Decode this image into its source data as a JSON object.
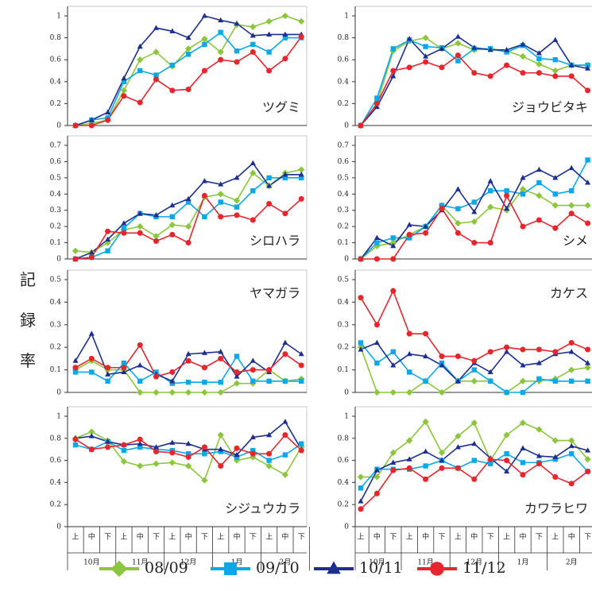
{
  "y_label": "記録率",
  "x_axis": {
    "categories": [
      "上",
      "中",
      "下",
      "上",
      "中",
      "下",
      "上",
      "中",
      "下",
      "上",
      "中",
      "下",
      "上",
      "中",
      "下"
    ],
    "groups": [
      "10月",
      "11月",
      "12月",
      "1月",
      "2月"
    ]
  },
  "legend": [
    {
      "name": "08/09",
      "color": "#8cc63e",
      "marker": "diamond"
    },
    {
      "name": "09/10",
      "color": "#0aa8e8",
      "marker": "square"
    },
    {
      "name": "10/11",
      "color": "#1c2f8f",
      "marker": "triangle"
    },
    {
      "name": "11/12",
      "color": "#e6262c",
      "marker": "circle"
    }
  ],
  "chart_data": [
    {
      "type": "line",
      "title": "ツグミ",
      "ylim": [
        0,
        1
      ],
      "yticks": [
        0,
        0.2,
        0.4,
        0.6,
        0.8,
        1
      ],
      "series": [
        {
          "values": [
            0,
            0.02,
            0.05,
            0.32,
            0.6,
            0.67,
            0.54,
            0.7,
            0.79,
            0.67,
            0.92,
            0.9,
            0.95,
            1.0,
            0.95
          ]
        },
        {
          "values": [
            0,
            0.05,
            0.07,
            0.4,
            0.5,
            0.46,
            0.55,
            0.65,
            0.74,
            0.85,
            0.68,
            0.74,
            0.67,
            0.8,
            0.8
          ]
        },
        {
          "values": [
            0,
            0.05,
            0.12,
            0.43,
            0.72,
            0.89,
            0.86,
            0.8,
            1.0,
            0.96,
            0.93,
            0.82,
            0.83,
            0.83,
            0.83
          ]
        },
        {
          "values": [
            0,
            0,
            0.05,
            0.27,
            0.21,
            0.42,
            0.32,
            0.33,
            0.5,
            0.6,
            0.58,
            0.67,
            0.5,
            0.61,
            0.81
          ]
        }
      ]
    },
    {
      "type": "line",
      "title": "ジョウビタキ",
      "ylim": [
        0,
        1
      ],
      "yticks": [
        0,
        0.2,
        0.4,
        0.6,
        0.8,
        1
      ],
      "series": [
        {
          "values": [
            0,
            0.2,
            0.68,
            0.77,
            0.8,
            0.7,
            0.75,
            0.69,
            0.7,
            0.68,
            0.63,
            0.56,
            0.5,
            0.55,
            0.55
          ]
        },
        {
          "values": [
            0,
            0.25,
            0.7,
            0.78,
            0.72,
            0.71,
            0.59,
            0.7,
            0.7,
            0.67,
            0.73,
            0.61,
            0.6,
            0.55,
            0.55
          ]
        },
        {
          "values": [
            0,
            0.17,
            0.45,
            0.79,
            0.63,
            0.7,
            0.81,
            0.71,
            0.69,
            0.69,
            0.74,
            0.66,
            0.78,
            0.55,
            0.52
          ]
        },
        {
          "values": [
            0,
            0.2,
            0.5,
            0.53,
            0.58,
            0.53,
            0.64,
            0.48,
            0.45,
            0.55,
            0.48,
            0.48,
            0.45,
            0.45,
            0.32
          ]
        }
      ]
    },
    {
      "type": "line",
      "title": "シロハラ",
      "ylim": [
        0,
        0.7
      ],
      "yticks": [
        0,
        0.1,
        0.2,
        0.3,
        0.4,
        0.5,
        0.6,
        0.7
      ],
      "series": [
        {
          "values": [
            0.05,
            0.04,
            0.1,
            0.18,
            0.2,
            0.14,
            0.21,
            0.2,
            0.38,
            0.4,
            0.36,
            0.53,
            0.45,
            0.53,
            0.55
          ]
        },
        {
          "values": [
            0,
            0.01,
            0.05,
            0.19,
            0.28,
            0.26,
            0.26,
            0.35,
            0.26,
            0.35,
            0.32,
            0.42,
            0.5,
            0.5,
            0.5
          ]
        },
        {
          "values": [
            0,
            0.04,
            0.12,
            0.22,
            0.28,
            0.27,
            0.33,
            0.37,
            0.48,
            0.46,
            0.5,
            0.59,
            0.45,
            0.52,
            0.52
          ]
        },
        {
          "values": [
            0,
            0.01,
            0.17,
            0.16,
            0.16,
            0.11,
            0.15,
            0.1,
            0.39,
            0.26,
            0.27,
            0.24,
            0.34,
            0.28,
            0.37
          ]
        }
      ]
    },
    {
      "type": "line",
      "title": "シメ",
      "ylim": [
        0,
        0.7
      ],
      "yticks": [
        0,
        0.1,
        0.2,
        0.3,
        0.4,
        0.5,
        0.6,
        0.7
      ],
      "series": [
        {
          "values": [
            0,
            0.08,
            0.1,
            0.15,
            0.2,
            0.33,
            0.22,
            0.23,
            0.32,
            0.3,
            0.43,
            0.39,
            0.33,
            0.33,
            0.33
          ]
        },
        {
          "values": [
            0,
            0.1,
            0.13,
            0.13,
            0.2,
            0.33,
            0.31,
            0.35,
            0.42,
            0.42,
            0.4,
            0.47,
            0.4,
            0.42,
            0.61
          ]
        },
        {
          "values": [
            0,
            0.13,
            0.08,
            0.21,
            0.2,
            0.3,
            0.43,
            0.29,
            0.48,
            0.31,
            0.5,
            0.55,
            0.5,
            0.56,
            0.47
          ]
        },
        {
          "values": [
            0,
            0,
            0,
            0.15,
            0.16,
            0.31,
            0.16,
            0.1,
            0.1,
            0.39,
            0.2,
            0.24,
            0.19,
            0.28,
            0.22
          ]
        }
      ]
    },
    {
      "type": "line",
      "title": "ヤマガラ",
      "ylim": [
        0,
        0.5
      ],
      "yticks": [
        0,
        0.1,
        0.2,
        0.3,
        0.4,
        0.5
      ],
      "series": [
        {
          "values": [
            0.1,
            0.14,
            0.1,
            0.1,
            0,
            0,
            0,
            0,
            0,
            0,
            0.04,
            0.04,
            0.1,
            0.05,
            0.06
          ]
        },
        {
          "values": [
            0.09,
            0.09,
            0.05,
            0.13,
            0.05,
            0.09,
            0.04,
            0.045,
            0.045,
            0.045,
            0.16,
            0.05,
            0.05,
            0.05,
            0.05
          ]
        },
        {
          "values": [
            0.14,
            0.26,
            0.08,
            0.09,
            0.12,
            0.08,
            0.05,
            0.17,
            0.175,
            0.18,
            0.07,
            0.14,
            0.09,
            0.22,
            0.17
          ]
        },
        {
          "values": [
            0.11,
            0.15,
            0.11,
            0.11,
            0.21,
            0.07,
            0.09,
            0.14,
            0.11,
            0.15,
            0.09,
            0.1,
            0.1,
            0.17,
            0.12
          ]
        }
      ]
    },
    {
      "type": "line",
      "title": "カケス",
      "ylim": [
        0,
        0.5
      ],
      "yticks": [
        0,
        0.1,
        0.2,
        0.3,
        0.4,
        0.5
      ],
      "series": [
        {
          "values": [
            0.2,
            0,
            0,
            0,
            0.05,
            0,
            0.05,
            0.05,
            0.05,
            0,
            0.05,
            0.05,
            0.06,
            0.1,
            0.11
          ]
        },
        {
          "values": [
            0.22,
            0.13,
            0.18,
            0.09,
            0.05,
            0.13,
            0.05,
            0.1,
            0.05,
            0,
            0,
            0.06,
            0.05,
            0.05,
            0.05
          ]
        },
        {
          "values": [
            0.19,
            0.22,
            0.12,
            0.17,
            0.16,
            0.12,
            0.05,
            0.13,
            0.09,
            0.18,
            0.12,
            0.13,
            0.17,
            0.18,
            0.13
          ]
        },
        {
          "values": [
            0.42,
            0.3,
            0.45,
            0.26,
            0.26,
            0.16,
            0.16,
            0.14,
            0.18,
            0.2,
            0.19,
            0.19,
            0.18,
            0.22,
            0.19
          ]
        }
      ]
    },
    {
      "type": "line",
      "title": "シジュウカラ",
      "ylim": [
        0,
        1
      ],
      "yticks": [
        0,
        0.2,
        0.4,
        0.6,
        0.8,
        1
      ],
      "series": [
        {
          "values": [
            0.8,
            0.86,
            0.78,
            0.59,
            0.55,
            0.57,
            0.58,
            0.55,
            0.42,
            0.83,
            0.6,
            0.63,
            0.55,
            0.47,
            0.72
          ]
        },
        {
          "values": [
            0.74,
            0.7,
            0.77,
            0.69,
            0.72,
            0.7,
            0.69,
            0.66,
            0.66,
            0.68,
            0.63,
            0.69,
            0.6,
            0.65,
            0.75
          ]
        },
        {
          "values": [
            0.8,
            0.82,
            0.77,
            0.74,
            0.75,
            0.72,
            0.76,
            0.75,
            0.7,
            0.7,
            0.65,
            0.81,
            0.83,
            0.95,
            0.7
          ]
        },
        {
          "values": [
            0.79,
            0.7,
            0.72,
            0.74,
            0.79,
            0.68,
            0.67,
            0.63,
            0.72,
            0.55,
            0.71,
            0.66,
            0.66,
            0.83,
            0.69
          ]
        }
      ]
    },
    {
      "type": "line",
      "title": "カワラヒワ",
      "ylim": [
        0,
        1
      ],
      "yticks": [
        0,
        0.2,
        0.4,
        0.6,
        0.8,
        1
      ],
      "series": [
        {
          "values": [
            0.45,
            0.45,
            0.67,
            0.78,
            0.95,
            0.67,
            0.82,
            0.94,
            0.6,
            0.83,
            0.94,
            0.88,
            0.78,
            0.78,
            0.61
          ]
        },
        {
          "values": [
            0.35,
            0.52,
            0.52,
            0.52,
            0.55,
            0.6,
            0.53,
            0.6,
            0.57,
            0.66,
            0.58,
            0.58,
            0.61,
            0.66,
            0.5
          ]
        },
        {
          "values": [
            0.23,
            0.51,
            0.58,
            0.61,
            0.68,
            0.6,
            0.72,
            0.75,
            0.62,
            0.5,
            0.71,
            0.64,
            0.63,
            0.73,
            0.69
          ]
        },
        {
          "values": [
            0.16,
            0.3,
            0.51,
            0.53,
            0.43,
            0.53,
            0.53,
            0.43,
            0.61,
            0.6,
            0.47,
            0.57,
            0.45,
            0.39,
            0.5
          ]
        }
      ]
    }
  ]
}
